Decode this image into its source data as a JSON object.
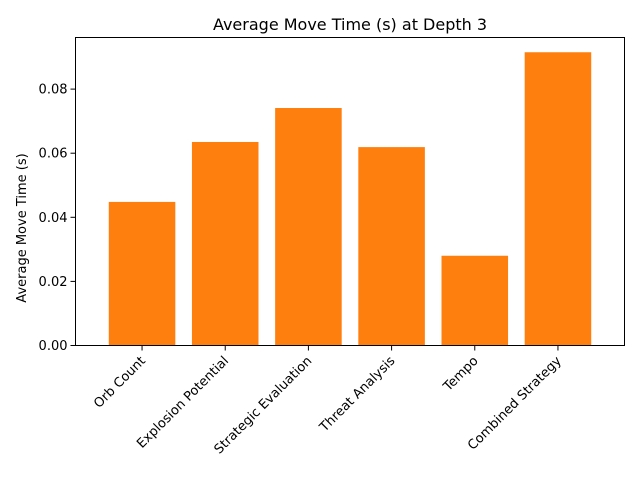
{
  "chart_data": {
    "type": "bar",
    "title": "Average Move Time (s) at Depth 3",
    "xlabel": "",
    "ylabel": "Average Move Time (s)",
    "categories": [
      "Orb Count",
      "Explosion Potential",
      "Strategic Evaluation",
      "Threat Analysis",
      "Tempo",
      "Combined Strategy"
    ],
    "values": [
      0.0448,
      0.0635,
      0.0741,
      0.0619,
      0.028,
      0.0915
    ],
    "ylim": [
      0,
      0.0961
    ],
    "yticks": [
      "0.00",
      "0.02",
      "0.04",
      "0.06",
      "0.08"
    ],
    "bar_color": "#ff7f0e",
    "grid": false,
    "legend": "none"
  }
}
